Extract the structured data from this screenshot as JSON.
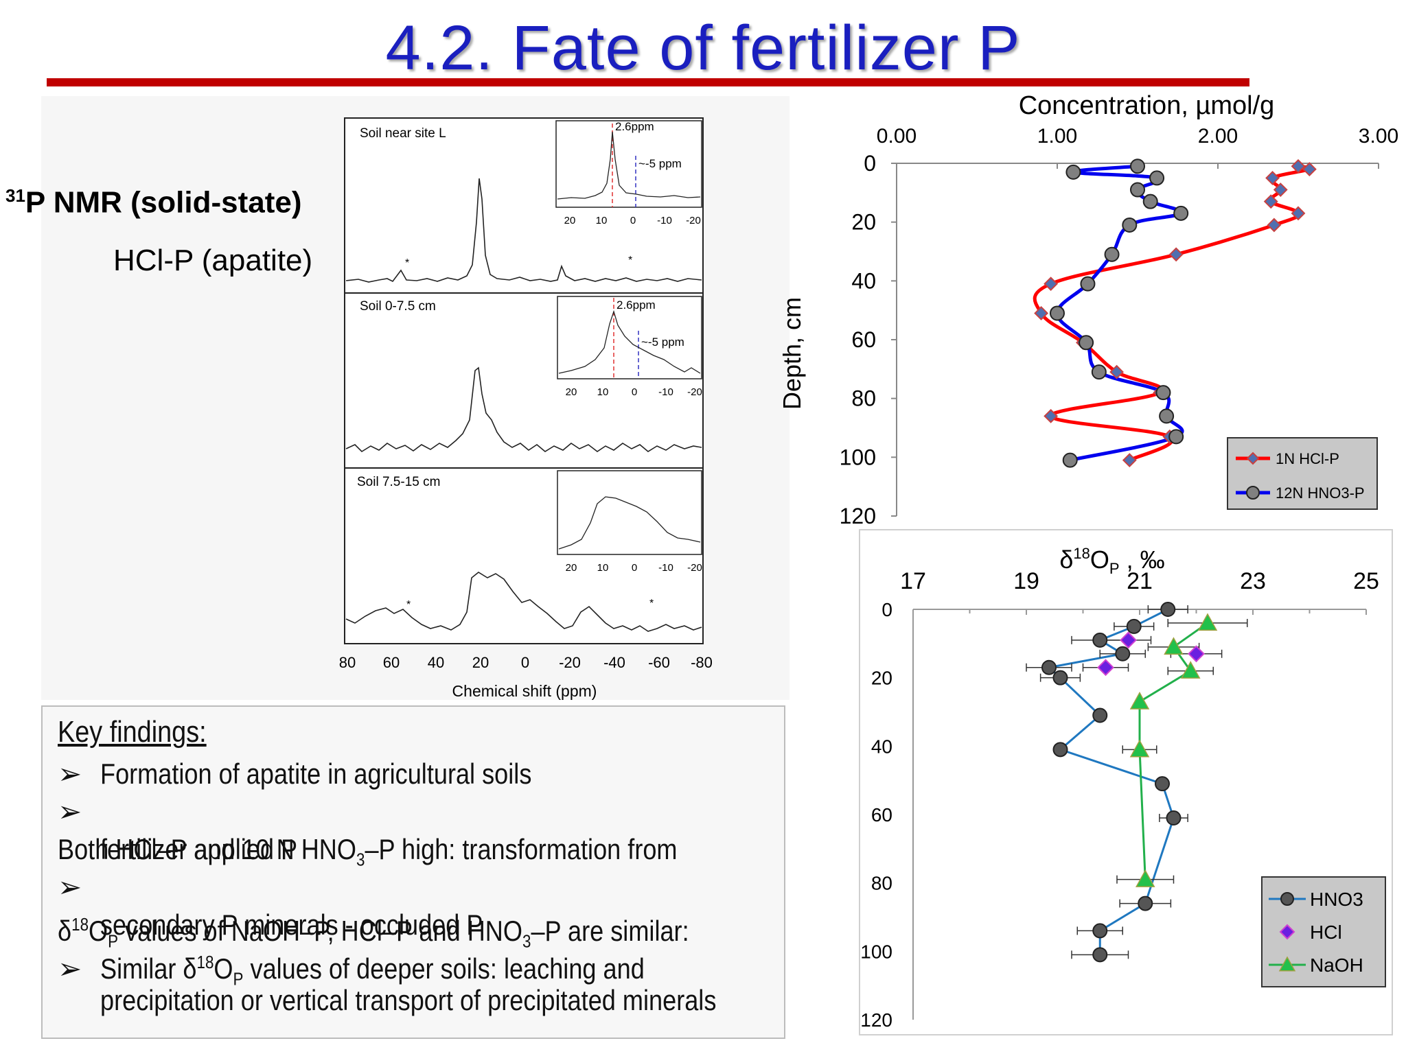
{
  "slide": {
    "title": "4.2. Fate of fertilizer P",
    "nmr_heading_sup": "31",
    "nmr_heading": "P NMR (solid-state)",
    "nmr_subheading": "HCl-P (apatite)"
  },
  "nmr_figure": {
    "panels": [
      {
        "label": "Soil near site L",
        "peak1": "2.6ppm",
        "peak2": "~-5 ppm"
      },
      {
        "label": "Soil 0-7.5 cm",
        "peak1": "2.6ppm",
        "peak2": "~-5 ppm"
      },
      {
        "label": "Soil 7.5-15 cm"
      }
    ],
    "inset_ticks": [
      "20",
      "10",
      "0",
      "-10",
      "-20"
    ],
    "x_ticks": [
      "80",
      "60",
      "40",
      "20",
      "0",
      "-20",
      "-40",
      "-60",
      "-80"
    ],
    "xlabel": "Chemical shift (ppm)",
    "spinning_sideband_marker": "*"
  },
  "findings": {
    "title": "Key findings:",
    "bullet": "➢",
    "items": [
      {
        "line1": "Formation of apatite in agricultural soils"
      },
      {
        "line1_a": "Both HCl–P and 10 N HNO",
        "line1_sub": "3",
        "line1_b": "–P  high: transformation from",
        "line2": "fertilizer applied P"
      },
      {
        "line1_a": "δ",
        "line1_sup": "18",
        "line1_b": "O",
        "line1_sub": "P",
        "line1_c": " values of NaOH–P, HCl–P and HNO",
        "line1_sub2": "3",
        "line1_d": "–P are similar:",
        "line2": "secondary P minerals - occluded P"
      },
      {
        "line1_a": "Similar δ",
        "line1_sup": "18",
        "line1_b": "O",
        "line1_sub": "P",
        "line1_c": " values of deeper soils: leaching and",
        "line2": "precipitation or vertical transport of precipitated minerals"
      }
    ]
  },
  "chart_data": [
    {
      "type": "line",
      "title": "Concentration, µmol/g",
      "xlabel": "Concentration, µmol/g",
      "ylabel": "Depth, cm",
      "xlim": [
        0,
        3
      ],
      "ylim": [
        0,
        120
      ],
      "x_ticks": [
        "0.00",
        "1.00",
        "2.00",
        "3.00"
      ],
      "y_ticks": [
        "0",
        "20",
        "40",
        "60",
        "80",
        "100",
        "120"
      ],
      "y_inverted": true,
      "legend_position": "bottom-right",
      "series": [
        {
          "name": "1N HCl-P",
          "color": "#ff0000",
          "marker": "diamond",
          "marker_color": "#4f6fb0",
          "points": [
            [
              2.5,
              1
            ],
            [
              2.57,
              2
            ],
            [
              2.34,
              5
            ],
            [
              2.39,
              9
            ],
            [
              2.33,
              13
            ],
            [
              2.5,
              17
            ],
            [
              2.35,
              21
            ],
            [
              1.74,
              31
            ],
            [
              0.96,
              41
            ],
            [
              0.9,
              51
            ],
            [
              1.16,
              61
            ],
            [
              1.37,
              71
            ],
            [
              1.64,
              78
            ],
            [
              0.96,
              86
            ],
            [
              1.7,
              93
            ],
            [
              1.45,
              101
            ]
          ]
        },
        {
          "name": "12N HNO3-P",
          "color": "#0000ee",
          "marker": "circle",
          "marker_color": "#808080",
          "points": [
            [
              1.5,
              1
            ],
            [
              1.1,
              3
            ],
            [
              1.62,
              5
            ],
            [
              1.5,
              9
            ],
            [
              1.58,
              13
            ],
            [
              1.77,
              17
            ],
            [
              1.45,
              21
            ],
            [
              1.34,
              31
            ],
            [
              1.19,
              41
            ],
            [
              1.0,
              51
            ],
            [
              1.18,
              61
            ],
            [
              1.26,
              71
            ],
            [
              1.66,
              78
            ],
            [
              1.68,
              86
            ],
            [
              1.74,
              93
            ],
            [
              1.08,
              101
            ]
          ]
        }
      ]
    },
    {
      "type": "scatter",
      "title": "δ18OP , ‰",
      "title_parts": {
        "delta": "δ",
        "sup": "18",
        "o": "O",
        "sub": "P",
        "unit": " , ‰"
      },
      "xlim": [
        17,
        25
      ],
      "ylim": [
        0,
        120
      ],
      "x_ticks": [
        "17",
        "19",
        "21",
        "23",
        "25"
      ],
      "y_ticks": [
        "0",
        "20",
        "40",
        "60",
        "80",
        "100",
        "120"
      ],
      "y_inverted": true,
      "legend_position": "bottom-right",
      "series": [
        {
          "name": "HNO3",
          "color": "#1f78c0",
          "marker": "circle",
          "marker_color": "#555555",
          "connected": true,
          "points": [
            [
              21.5,
              0,
              0.35
            ],
            [
              20.9,
              5,
              0.35
            ],
            [
              20.3,
              9,
              0.5
            ],
            [
              20.7,
              13,
              0.4
            ],
            [
              19.4,
              17,
              0.4
            ],
            [
              19.6,
              20,
              0.35
            ],
            [
              20.3,
              31,
              0
            ],
            [
              19.6,
              41,
              0
            ],
            [
              21.4,
              51,
              0
            ],
            [
              21.6,
              61,
              0.25
            ],
            [
              21.1,
              86,
              0.45
            ],
            [
              20.3,
              94,
              0.4
            ],
            [
              20.3,
              101,
              0.5
            ]
          ]
        },
        {
          "name": "HCl",
          "color": "#6a1fe0",
          "marker": "diamond",
          "marker_color": "#6a1fe0",
          "connected": false,
          "points": [
            [
              20.8,
              9,
              0.4
            ],
            [
              22.0,
              13,
              0.45
            ],
            [
              20.4,
              17,
              0.4
            ]
          ]
        },
        {
          "name": "NaOH",
          "color": "#22b04b",
          "marker": "triangle",
          "marker_color": "#22c04b",
          "connected": true,
          "points": [
            [
              22.2,
              4,
              0.7
            ],
            [
              21.6,
              11,
              0.45
            ],
            [
              21.9,
              18,
              0.4
            ],
            [
              21.0,
              27,
              0
            ],
            [
              21.0,
              41,
              0.3
            ],
            [
              21.1,
              79,
              0.5
            ]
          ]
        }
      ]
    }
  ]
}
